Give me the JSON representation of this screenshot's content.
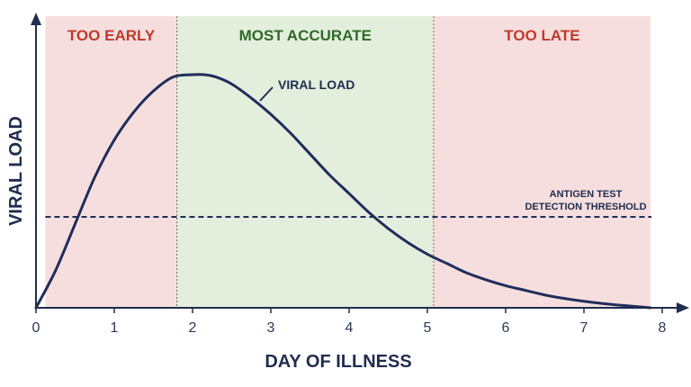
{
  "chart_data": {
    "type": "line",
    "title": "",
    "xlabel": "DAY OF ILLNESS",
    "ylabel": "VIRAL LOAD",
    "xlim": [
      0,
      8.2
    ],
    "ylim": [
      0,
      1.05
    ],
    "x_ticks": [
      "0",
      "1",
      "2",
      "3",
      "4",
      "5",
      "6",
      "7",
      "8"
    ],
    "grid": false,
    "zones": [
      {
        "label": "TOO EARLY",
        "x_start": 0.12,
        "x_end": 1.8,
        "fill": "#f6dede",
        "label_color": "#c0392b"
      },
      {
        "label": "MOST ACCURATE",
        "x_start": 1.8,
        "x_end": 5.08,
        "fill": "#e3eedd",
        "label_color": "#2e6a26"
      },
      {
        "label": "TOO LATE",
        "x_start": 5.08,
        "x_end": 7.85,
        "fill": "#f6dede",
        "label_color": "#c0392b"
      }
    ],
    "series": [
      {
        "name": "VIRAL LOAD",
        "color": "#1f2d5a",
        "x": [
          0,
          0.25,
          0.5,
          0.75,
          1.0,
          1.25,
          1.5,
          1.75,
          2.0,
          2.15,
          2.3,
          2.5,
          2.75,
          3.0,
          3.25,
          3.5,
          3.75,
          4.0,
          4.25,
          4.5,
          4.75,
          5.0,
          5.25,
          5.5,
          5.75,
          6.0,
          6.25,
          6.5,
          6.75,
          7.0,
          7.25,
          7.5,
          7.85
        ],
        "y": [
          0.0,
          0.16,
          0.36,
          0.56,
          0.72,
          0.84,
          0.93,
          0.99,
          1.0,
          1.0,
          0.99,
          0.96,
          0.9,
          0.83,
          0.75,
          0.66,
          0.57,
          0.49,
          0.41,
          0.34,
          0.28,
          0.23,
          0.19,
          0.15,
          0.12,
          0.095,
          0.075,
          0.055,
          0.04,
          0.028,
          0.018,
          0.01,
          0.0
        ]
      }
    ],
    "threshold": {
      "label_line1": "ANTIGEN TEST",
      "label_line2": "DETECTION THRESHOLD",
      "y": 0.39,
      "color": "#1f2d5a"
    },
    "colors": {
      "axis": "#1f2d4f",
      "curve": "#1f2d5a"
    }
  }
}
